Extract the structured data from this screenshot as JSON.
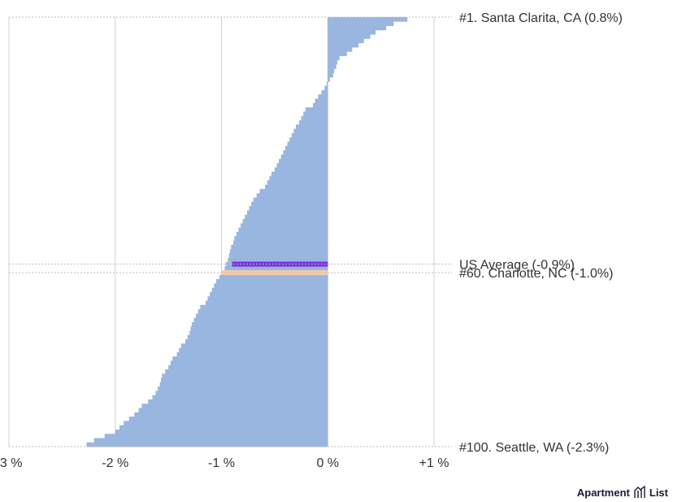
{
  "chart_data": {
    "type": "bar",
    "orientation": "horizontal",
    "sorted": "descending",
    "xlim": [
      -3.0,
      1.0
    ],
    "x_ticks": [
      -3,
      -2,
      -1,
      0,
      1
    ],
    "x_tick_labels": [
      "-3 %",
      "-2 %",
      "-1 %",
      "0 %",
      "+1 %"
    ],
    "grid": true,
    "bar_color": "#99b6e0",
    "series": [
      {
        "values": [
          0.75,
          0.62,
          0.55,
          0.45,
          0.4,
          0.34,
          0.29,
          0.23,
          0.18,
          0.11,
          0.09,
          0.08,
          0.06,
          0.05,
          0.02,
          -0.01,
          -0.03,
          -0.06,
          -0.09,
          -0.12,
          -0.14,
          -0.21,
          -0.23,
          -0.25,
          -0.27,
          -0.3,
          -0.32,
          -0.34,
          -0.36,
          -0.38,
          -0.4,
          -0.42,
          -0.44,
          -0.46,
          -0.48,
          -0.5,
          -0.53,
          -0.55,
          -0.57,
          -0.59,
          -0.64,
          -0.67,
          -0.7,
          -0.72,
          -0.74,
          -0.76,
          -0.78,
          -0.8,
          -0.82,
          -0.84,
          -0.86,
          -0.88,
          -0.89,
          -0.91,
          -0.92,
          -0.93,
          -0.94,
          -0.96,
          -0.97,
          -1.0,
          -1.02,
          -1.05,
          -1.07,
          -1.09,
          -1.11,
          -1.13,
          -1.15,
          -1.2,
          -1.22,
          -1.24,
          -1.26,
          -1.28,
          -1.29,
          -1.3,
          -1.32,
          -1.34,
          -1.38,
          -1.4,
          -1.42,
          -1.46,
          -1.48,
          -1.5,
          -1.53,
          -1.56,
          -1.57,
          -1.58,
          -1.6,
          -1.62,
          -1.65,
          -1.69,
          -1.75,
          -1.78,
          -1.82,
          -1.87,
          -1.92,
          -1.96,
          -2.0,
          -2.1,
          -2.2,
          -2.27
        ]
      }
    ],
    "annotations": [
      {
        "label": "#1. Santa Clarita, CA (0.8%)",
        "rank": 1
      },
      {
        "label": "US Average (-0.9%)",
        "value": -0.9,
        "rank": 58,
        "color": "#7b2fe0"
      },
      {
        "label": "#60. Charlotte, NC (-1.0%)",
        "value": -1.0,
        "rank": 60,
        "color": "#f9caa7"
      },
      {
        "label": "#100. Seattle, WA (-2.3%)",
        "rank": 100
      }
    ]
  },
  "brand": {
    "name_left": "Apartment",
    "name_right": "List"
  }
}
